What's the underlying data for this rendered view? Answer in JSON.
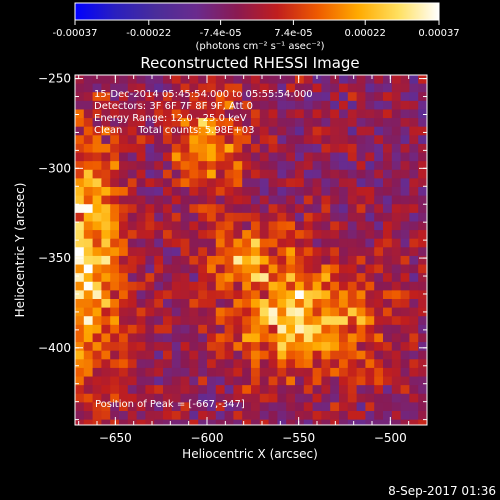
{
  "chart_data": {
    "type": "heatmap",
    "title": "Reconstructed RHESSI Image",
    "xlabel": "Heliocentric X (arcsec)",
    "ylabel": "Heliocentric Y (arcsec)",
    "xlim": [
      -672,
      -480
    ],
    "ylim": [
      -443,
      -248
    ],
    "xticks": [
      -650,
      -600,
      -550,
      -500
    ],
    "yticks": [
      -250,
      -300,
      -350,
      -400
    ],
    "colorbar": {
      "range": [
        -0.00037,
        0.00037
      ],
      "tick_values": [
        -0.00037,
        -0.00022,
        -7.4e-05,
        7.4e-05,
        0.00022,
        0.00037
      ],
      "tick_labels": [
        "-0.00037",
        "-0.00022",
        "-7.4e-05",
        "7.4e-05",
        "0.00022",
        "0.00037"
      ],
      "unit_label": "(photons cm⁻² s⁻¹ asec⁻²)"
    },
    "info": {
      "time": "15-Dec-2014 05:45:54.000 to 05:55:54.000",
      "detectors": "Detectors: 3F 6F 7F 8F 9F, Att 0",
      "energy": "Energy Range: 12.0 - 25.0 keV",
      "clean": "Clean     Total counts: 5.98E+03"
    },
    "peak_label": "Position of Peak = [-667,-347]",
    "peak": [
      -667,
      -347
    ],
    "sources": [
      {
        "x": -668,
        "y": -350,
        "sx": 16,
        "sy": 48,
        "amp": 0.00037
      },
      {
        "x": -545,
        "y": -385,
        "sx": 30,
        "sy": 22,
        "amp": 0.00031
      },
      {
        "x": -600,
        "y": -285,
        "sx": 14,
        "sy": 18,
        "amp": 0.00025
      },
      {
        "x": -578,
        "y": -345,
        "sx": 18,
        "sy": 14,
        "amp": 0.00019
      }
    ],
    "colors": [
      "#0000ff",
      "#2a1fbf",
      "#4a2d9a",
      "#6a2b8e",
      "#8a1a52",
      "#c01e1e",
      "#ee5a00",
      "#ffaa00",
      "#ffe060",
      "#ffffff"
    ]
  },
  "footer": {
    "timestamp": "8-Sep-2017 01:36"
  }
}
